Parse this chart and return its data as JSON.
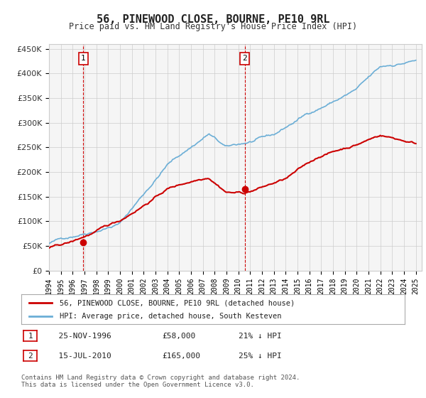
{
  "title": "56, PINEWOOD CLOSE, BOURNE, PE10 9RL",
  "subtitle": "Price paid vs. HM Land Registry's House Price Index (HPI)",
  "ylabel_ticks": [
    "£0",
    "£50K",
    "£100K",
    "£150K",
    "£200K",
    "£250K",
    "£300K",
    "£350K",
    "£400K",
    "£450K"
  ],
  "ytick_values": [
    0,
    50000,
    100000,
    150000,
    200000,
    250000,
    300000,
    350000,
    400000,
    450000
  ],
  "ylim": [
    0,
    460000
  ],
  "xlim_start": 1994.0,
  "xlim_end": 2025.5,
  "hpi_color": "#6baed6",
  "price_color": "#cc0000",
  "marker_color": "#cc0000",
  "sale1_x": 1996.9,
  "sale1_y": 58000,
  "sale1_label": "1",
  "sale2_x": 2010.54,
  "sale2_y": 165000,
  "sale2_label": "2",
  "vline1_x": 1996.9,
  "vline2_x": 2010.54,
  "vline_color": "#cc0000",
  "grid_color": "#cccccc",
  "background_color": "#ffffff",
  "plot_bg_color": "#f5f5f5",
  "legend_line1": "56, PINEWOOD CLOSE, BOURNE, PE10 9RL (detached house)",
  "legend_line2": "HPI: Average price, detached house, South Kesteven",
  "table_row1": [
    "1",
    "25-NOV-1996",
    "£58,000",
    "21% ↓ HPI"
  ],
  "table_row2": [
    "2",
    "15-JUL-2010",
    "£165,000",
    "25% ↓ HPI"
  ],
  "footer": "Contains HM Land Registry data © Crown copyright and database right 2024.\nThis data is licensed under the Open Government Licence v3.0.",
  "font_family": "monospace"
}
